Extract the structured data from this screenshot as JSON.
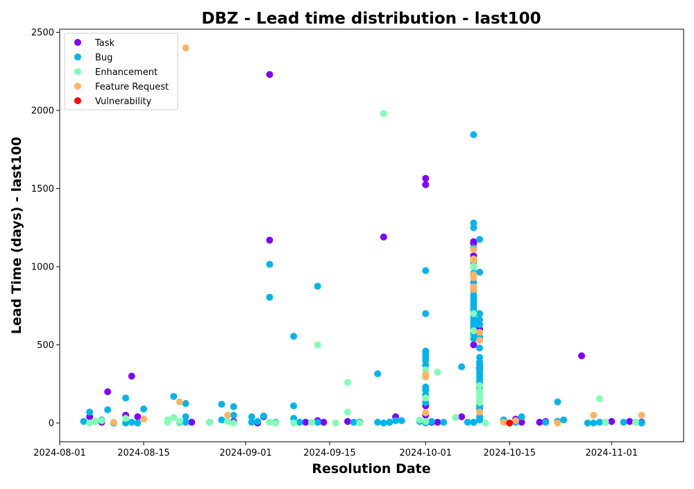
{
  "chart_data": {
    "type": "scatter",
    "title": "DBZ - Lead time distribution - last100",
    "xlabel": "Resolution Date",
    "ylabel": "Lead Time (days) - last100",
    "x_is_date": true,
    "xlim": [
      "2024-08-01",
      "2024-11-13"
    ],
    "ylim": [
      -120,
      2520
    ],
    "xticks": [
      "2024-08-01",
      "2024-08-15",
      "2024-09-01",
      "2024-09-15",
      "2024-10-01",
      "2024-10-15",
      "2024-11-01"
    ],
    "yticks": [
      0,
      500,
      1000,
      1500,
      2000,
      2500
    ],
    "grid": false,
    "legend_position": "top-left",
    "colors": {
      "Task": "#8000ff",
      "Bug": "#00b5eb",
      "Enhancement": "#80ffb4",
      "Feature Request": "#ffb360",
      "Vulnerability": "#ff0000"
    },
    "series": [
      {
        "name": "Task",
        "points": [
          [
            "2024-08-06",
            40
          ],
          [
            "2024-08-07",
            10
          ],
          [
            "2024-08-08",
            5
          ],
          [
            "2024-08-09",
            200
          ],
          [
            "2024-08-12",
            50
          ],
          [
            "2024-08-13",
            300
          ],
          [
            "2024-08-14",
            40
          ],
          [
            "2024-08-23",
            5
          ],
          [
            "2024-08-26",
            5
          ],
          [
            "2024-08-30",
            10
          ],
          [
            "2024-09-03",
            0
          ],
          [
            "2024-09-04",
            40
          ],
          [
            "2024-09-05",
            2230
          ],
          [
            "2024-09-05",
            1170
          ],
          [
            "2024-09-11",
            5
          ],
          [
            "2024-09-13",
            15
          ],
          [
            "2024-09-14",
            5
          ],
          [
            "2024-09-18",
            10
          ],
          [
            "2024-09-20",
            5
          ],
          [
            "2024-09-25",
            5
          ],
          [
            "2024-09-24",
            1190
          ],
          [
            "2024-09-26",
            40
          ],
          [
            "2024-10-01",
            1565
          ],
          [
            "2024-10-01",
            1525
          ],
          [
            "2024-10-01",
            50
          ],
          [
            "2024-10-01",
            110
          ],
          [
            "2024-10-02",
            5
          ],
          [
            "2024-10-03",
            5
          ],
          [
            "2024-10-07",
            40
          ],
          [
            "2024-10-09",
            1160
          ],
          [
            "2024-10-09",
            1150
          ],
          [
            "2024-10-09",
            1070
          ],
          [
            "2024-10-09",
            870
          ],
          [
            "2024-10-09",
            700
          ],
          [
            "2024-10-09",
            580
          ],
          [
            "2024-10-09",
            500
          ],
          [
            "2024-10-09",
            5
          ],
          [
            "2024-10-10",
            600
          ],
          [
            "2024-10-10",
            350
          ],
          [
            "2024-10-10",
            150
          ],
          [
            "2024-10-16",
            25
          ],
          [
            "2024-10-17",
            5
          ],
          [
            "2024-10-20",
            5
          ],
          [
            "2024-10-21",
            10
          ],
          [
            "2024-10-27",
            430
          ],
          [
            "2024-10-31",
            5
          ],
          [
            "2024-11-01",
            10
          ],
          [
            "2024-11-04",
            10
          ],
          [
            "2024-11-05",
            5
          ],
          [
            "2024-11-06",
            5
          ]
        ]
      },
      {
        "name": "Bug",
        "points": [
          [
            "2024-08-05",
            10
          ],
          [
            "2024-08-06",
            70
          ],
          [
            "2024-08-08",
            20
          ],
          [
            "2024-08-09",
            85
          ],
          [
            "2024-08-10",
            0
          ],
          [
            "2024-08-12",
            160
          ],
          [
            "2024-08-12",
            0
          ],
          [
            "2024-08-13",
            5
          ],
          [
            "2024-08-14",
            0
          ],
          [
            "2024-08-15",
            90
          ],
          [
            "2024-08-20",
            170
          ],
          [
            "2024-08-21",
            5
          ],
          [
            "2024-08-22",
            125
          ],
          [
            "2024-08-22",
            40
          ],
          [
            "2024-08-22",
            5
          ],
          [
            "2024-08-28",
            120
          ],
          [
            "2024-08-28",
            20
          ],
          [
            "2024-08-30",
            105
          ],
          [
            "2024-08-30",
            50
          ],
          [
            "2024-09-02",
            40
          ],
          [
            "2024-09-02",
            5
          ],
          [
            "2024-09-03",
            10
          ],
          [
            "2024-09-04",
            45
          ],
          [
            "2024-09-05",
            1015
          ],
          [
            "2024-09-05",
            805
          ],
          [
            "2024-09-06",
            5
          ],
          [
            "2024-09-09",
            555
          ],
          [
            "2024-09-09",
            110
          ],
          [
            "2024-09-09",
            30
          ],
          [
            "2024-09-10",
            5
          ],
          [
            "2024-09-13",
            875
          ],
          [
            "2024-09-13",
            5
          ],
          [
            "2024-09-19",
            5
          ],
          [
            "2024-09-20",
            5
          ],
          [
            "2024-09-23",
            315
          ],
          [
            "2024-09-23",
            5
          ],
          [
            "2024-09-24",
            0
          ],
          [
            "2024-09-25",
            5
          ],
          [
            "2024-09-26",
            15
          ],
          [
            "2024-09-27",
            15
          ],
          [
            "2024-09-30",
            10
          ],
          [
            "2024-10-01",
            975
          ],
          [
            "2024-10-01",
            700
          ],
          [
            "2024-10-01",
            460
          ],
          [
            "2024-10-01",
            440
          ],
          [
            "2024-10-01",
            420
          ],
          [
            "2024-10-01",
            400
          ],
          [
            "2024-10-01",
            370
          ],
          [
            "2024-10-01",
            230
          ],
          [
            "2024-10-01",
            210
          ],
          [
            "2024-10-01",
            180
          ],
          [
            "2024-10-01",
            130
          ],
          [
            "2024-10-01",
            0
          ],
          [
            "2024-10-02",
            10
          ],
          [
            "2024-10-04",
            5
          ],
          [
            "2024-10-07",
            360
          ],
          [
            "2024-10-08",
            5
          ],
          [
            "2024-10-09",
            1845
          ],
          [
            "2024-10-09",
            1280
          ],
          [
            "2024-10-09",
            1250
          ],
          [
            "2024-10-09",
            1120
          ],
          [
            "2024-10-09",
            1030
          ],
          [
            "2024-10-09",
            1000
          ],
          [
            "2024-10-09",
            960
          ],
          [
            "2024-10-09",
            930
          ],
          [
            "2024-10-09",
            900
          ],
          [
            "2024-10-09",
            850
          ],
          [
            "2024-10-09",
            820
          ],
          [
            "2024-10-09",
            800
          ],
          [
            "2024-10-09",
            780
          ],
          [
            "2024-10-09",
            760
          ],
          [
            "2024-10-09",
            740
          ],
          [
            "2024-10-09",
            720
          ],
          [
            "2024-10-09",
            680
          ],
          [
            "2024-10-09",
            660
          ],
          [
            "2024-10-09",
            640
          ],
          [
            "2024-10-09",
            620
          ],
          [
            "2024-10-09",
            600
          ],
          [
            "2024-10-09",
            570
          ],
          [
            "2024-10-09",
            540
          ],
          [
            "2024-10-09",
            5
          ],
          [
            "2024-10-10",
            1175
          ],
          [
            "2024-10-10",
            965
          ],
          [
            "2024-10-10",
            700
          ],
          [
            "2024-10-10",
            660
          ],
          [
            "2024-10-10",
            630
          ],
          [
            "2024-10-10",
            550
          ],
          [
            "2024-10-10",
            480
          ],
          [
            "2024-10-10",
            420
          ],
          [
            "2024-10-10",
            390
          ],
          [
            "2024-10-10",
            370
          ],
          [
            "2024-10-10",
            340
          ],
          [
            "2024-10-10",
            320
          ],
          [
            "2024-10-10",
            300
          ],
          [
            "2024-10-10",
            280
          ],
          [
            "2024-10-10",
            260
          ],
          [
            "2024-10-10",
            230
          ],
          [
            "2024-10-10",
            110
          ],
          [
            "2024-10-10",
            90
          ],
          [
            "2024-10-10",
            40
          ],
          [
            "2024-10-10",
            20
          ],
          [
            "2024-10-14",
            20
          ],
          [
            "2024-10-16",
            5
          ],
          [
            "2024-10-17",
            40
          ],
          [
            "2024-10-21",
            5
          ],
          [
            "2024-10-23",
            135
          ],
          [
            "2024-10-23",
            10
          ],
          [
            "2024-10-24",
            20
          ],
          [
            "2024-10-28",
            0
          ],
          [
            "2024-10-29",
            0
          ],
          [
            "2024-10-30",
            5
          ],
          [
            "2024-11-03",
            5
          ],
          [
            "2024-11-06",
            0
          ]
        ]
      },
      {
        "name": "Enhancement",
        "points": [
          [
            "2024-08-06",
            0
          ],
          [
            "2024-08-07",
            10
          ],
          [
            "2024-08-08",
            15
          ],
          [
            "2024-08-12",
            30
          ],
          [
            "2024-08-19",
            20
          ],
          [
            "2024-08-19",
            5
          ],
          [
            "2024-08-20",
            35
          ],
          [
            "2024-08-21",
            10
          ],
          [
            "2024-08-26",
            5
          ],
          [
            "2024-08-29",
            10
          ],
          [
            "2024-08-30",
            0
          ],
          [
            "2024-09-05",
            5
          ],
          [
            "2024-09-06",
            0
          ],
          [
            "2024-09-09",
            0
          ],
          [
            "2024-09-12",
            5
          ],
          [
            "2024-09-13",
            500
          ],
          [
            "2024-09-16",
            0
          ],
          [
            "2024-09-18",
            260
          ],
          [
            "2024-09-18",
            70
          ],
          [
            "2024-09-20",
            0
          ],
          [
            "2024-09-24",
            1980
          ],
          [
            "2024-09-30",
            20
          ],
          [
            "2024-10-01",
            340
          ],
          [
            "2024-10-01",
            160
          ],
          [
            "2024-10-01",
            10
          ],
          [
            "2024-10-03",
            325
          ],
          [
            "2024-10-06",
            35
          ],
          [
            "2024-10-09",
            1000
          ],
          [
            "2024-10-09",
            700
          ],
          [
            "2024-10-09",
            590
          ],
          [
            "2024-10-10",
            240
          ],
          [
            "2024-10-10",
            200
          ],
          [
            "2024-10-10",
            175
          ],
          [
            "2024-10-10",
            150
          ],
          [
            "2024-10-10",
            130
          ],
          [
            "2024-10-11",
            0
          ],
          [
            "2024-10-30",
            155
          ],
          [
            "2024-10-31",
            5
          ],
          [
            "2024-11-05",
            5
          ]
        ]
      },
      {
        "name": "Feature Request",
        "points": [
          [
            "2024-08-10",
            5
          ],
          [
            "2024-08-15",
            25
          ],
          [
            "2024-08-21",
            135
          ],
          [
            "2024-08-22",
            2400
          ],
          [
            "2024-08-29",
            50
          ],
          [
            "2024-10-01",
            310
          ],
          [
            "2024-10-01",
            295
          ],
          [
            "2024-10-01",
            65
          ],
          [
            "2024-10-09",
            1110
          ],
          [
            "2024-10-09",
            1050
          ],
          [
            "2024-10-09",
            1040
          ],
          [
            "2024-10-09",
            950
          ],
          [
            "2024-10-09",
            930
          ],
          [
            "2024-10-09",
            870
          ],
          [
            "2024-10-09",
            855
          ],
          [
            "2024-10-10",
            580
          ],
          [
            "2024-10-10",
            530
          ],
          [
            "2024-10-10",
            70
          ],
          [
            "2024-10-14",
            5
          ],
          [
            "2024-10-16",
            15
          ],
          [
            "2024-10-23",
            0
          ],
          [
            "2024-10-29",
            50
          ],
          [
            "2024-11-06",
            50
          ]
        ]
      },
      {
        "name": "Vulnerability",
        "points": [
          [
            "2024-10-15",
            0
          ]
        ]
      }
    ]
  }
}
